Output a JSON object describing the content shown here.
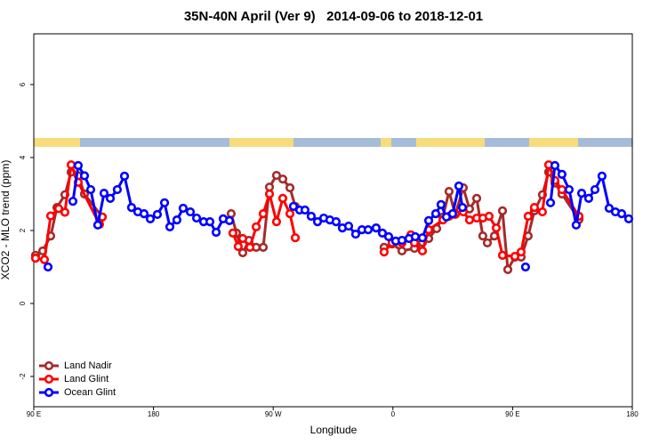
{
  "chart_data": {
    "type": "line",
    "title": "35N-40N April (Ver 9)   2014-09-06 to 2018-12-01",
    "x_label": "Longitude",
    "y_label": "XCO2 - MLO trend (ppm)",
    "xlim": [
      90,
      540
    ],
    "xticks": [
      {
        "value": 90,
        "label": "90 E"
      },
      180,
      {
        "value": 270,
        "label": "90 W"
      },
      {
        "value": 360,
        "label": "0"
      },
      {
        "value": 450,
        "label": "90 E"
      },
      {
        "value": 540,
        "label": "180"
      }
    ],
    "ylim": [
      -2.83,
      7.39
    ],
    "yticks": [
      -2,
      0,
      2,
      4,
      6
    ],
    "legend": "bottomleft",
    "series": [
      {
        "name": "Land Nadir",
        "color": "#a52a2a",
        "x": [
          91.3,
          96.7,
          102.7,
          107.4,
          113.4,
          118.1,
          123.4,
          128.1,
          141.5,
          null,
          238.4,
          242.4,
          247.1,
          251.8,
          257.2,
          262.5,
          267.2,
          272.5,
          277.2,
          282.6,
          286.6,
          null,
          353.4,
          359.4,
          366.8,
          376.2,
          382.2,
          386.9,
          392.9,
          397.6,
          402.2,
          406.9,
          412.9,
          417.6,
          423,
          427.6,
          431,
          436.3,
          442.4,
          446.4,
          451.7,
          456.4,
          461.7,
          466.4,
          472.4,
          477.1,
          481.8,
          487.1,
          499.9
        ],
        "values": [
          1.32,
          1.44,
          1.85,
          2.63,
          2.98,
          3.6,
          3.5,
          3.0,
          2.37,
          null,
          2.46,
          1.93,
          1.39,
          1.73,
          1.54,
          1.54,
          3.19,
          3.51,
          3.41,
          3.17,
          2.66,
          null,
          1.54,
          1.63,
          1.44,
          1.51,
          1.67,
          1.78,
          2.05,
          2.37,
          3.07,
          2.44,
          3.17,
          2.59,
          2.88,
          1.85,
          1.66,
          1.85,
          2.54,
          0.93,
          1.27,
          1.27,
          1.85,
          2.54,
          2.98,
          3.6,
          3.3,
          3.0,
          2.3
        ]
      },
      {
        "name": "Land Glint",
        "color": "#ff0000",
        "x": [
          91.3,
          98.0,
          102.7,
          108.7,
          113.4,
          118.1,
          123.4,
          139.4,
          141.5,
          null,
          239.7,
          243.7,
          247.1,
          252.5,
          257.2,
          262.5,
          267.2,
          272.5,
          277.2,
          282.6,
          286.6,
          null,
          353.4,
          359.4,
          366.8,
          373.5,
          376.2,
          382.2,
          386.9,
          397.6,
          402.2,
          406.9,
          412.9,
          417.6,
          423,
          427.6,
          432.3,
          437.7,
          442.4,
          451.7,
          456.4,
          461.7,
          466.4,
          472.4,
          477.1,
          481.8,
          487.1,
          499.9
        ],
        "values": [
          1.24,
          1.2,
          2.4,
          2.6,
          2.5,
          3.8,
          3.32,
          2.17,
          2.37,
          null,
          1.93,
          1.56,
          1.78,
          1.54,
          2.1,
          2.46,
          3.0,
          2.24,
          2.88,
          2.46,
          1.8,
          null,
          1.41,
          1.66,
          1.66,
          1.88,
          1.66,
          1.44,
          2.02,
          2.29,
          2.39,
          2.46,
          2.51,
          2.29,
          2.34,
          2.34,
          2.39,
          2.07,
          1.32,
          1.29,
          1.41,
          2.39,
          2.63,
          2.51,
          3.8,
          3.37,
          3.12,
          2.39
        ]
      },
      {
        "name": "Ocean Glint",
        "color": "#0000ff",
        "x": [
          100.7,
          null,
          119.4,
          123.4,
          128.1,
          132.8,
          138.1,
          142.8,
          147.5,
          152.8,
          158.2,
          163.5,
          168.2,
          172.9,
          177.6,
          182.9,
          188.3,
          192.3,
          197.6,
          202.3,
          207.7,
          212.4,
          217.7,
          222.4,
          227.1,
          232.4,
          237.1,
          null,
          285.2,
          289.9,
          293.9,
          298.6,
          303.3,
          308,
          312.6,
          317.3,
          322,
          326.7,
          332,
          336.7,
          341.4,
          347.4,
          352.1,
          356.8,
          362.1,
          366.8,
          372.1,
          376.8,
          382.2,
          386.9,
          392.2,
          396.2,
          400.2,
          404.9,
          409.6,
          412.3,
          null,
          459.7,
          null,
          478.5,
          481.8,
          487.1,
          492.5,
          497.8,
          501.9,
          507.2,
          511.9,
          517.2,
          522.6,
          527.3,
          532,
          537.3
        ],
        "values": [
          1.0,
          null,
          2.8,
          3.78,
          3.5,
          3.12,
          2.15,
          3.02,
          2.88,
          3.12,
          3.49,
          2.63,
          2.51,
          2.46,
          2.32,
          2.44,
          2.76,
          2.1,
          2.29,
          2.61,
          2.51,
          2.34,
          2.24,
          2.24,
          1.95,
          2.32,
          2.27,
          null,
          2.66,
          2.56,
          2.56,
          2.39,
          2.24,
          2.34,
          2.29,
          2.24,
          2.07,
          2.12,
          1.9,
          2.02,
          2.02,
          2.07,
          1.93,
          1.83,
          1.71,
          1.73,
          1.78,
          1.83,
          1.8,
          2.27,
          2.46,
          2.71,
          2.37,
          2.46,
          3.22,
          2.63,
          null,
          1.0,
          null,
          2.76,
          3.78,
          3.54,
          3.12,
          2.15,
          3.02,
          2.88,
          3.12,
          3.49,
          2.61,
          2.51,
          2.46,
          2.32
        ]
      }
    ]
  }
}
